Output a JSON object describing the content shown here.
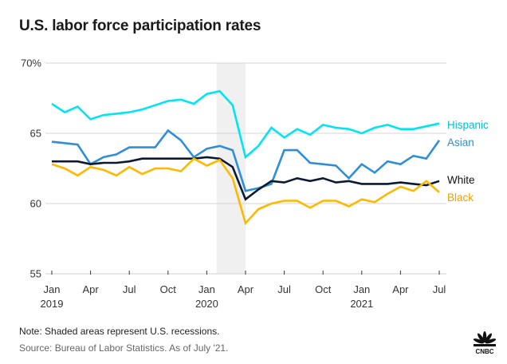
{
  "chart_data": {
    "type": "line",
    "title": "U.S. labor force participation rates",
    "xlabel": "",
    "ylabel": "",
    "ylim": [
      55,
      70
    ],
    "yticks": [
      {
        "value": 70,
        "label": "70%"
      },
      {
        "value": 65,
        "label": "65"
      },
      {
        "value": 60,
        "label": "60"
      },
      {
        "value": 55,
        "label": "55"
      }
    ],
    "x_start": "2019-01",
    "x_count": 31,
    "xticks": [
      {
        "index": 0,
        "label": "Jan",
        "year": "2019"
      },
      {
        "index": 3,
        "label": "Apr",
        "year": ""
      },
      {
        "index": 6,
        "label": "Jul",
        "year": ""
      },
      {
        "index": 9,
        "label": "Oct",
        "year": ""
      },
      {
        "index": 12,
        "label": "Jan",
        "year": "2020"
      },
      {
        "index": 15,
        "label": "Apr",
        "year": ""
      },
      {
        "index": 18,
        "label": "Jul",
        "year": ""
      },
      {
        "index": 21,
        "label": "Oct",
        "year": ""
      },
      {
        "index": 24,
        "label": "Jan",
        "year": "2021"
      },
      {
        "index": 27,
        "label": "Apr",
        "year": ""
      },
      {
        "index": 30,
        "label": "Jul",
        "year": ""
      }
    ],
    "recession": {
      "start_index": 13,
      "end_index": 15
    },
    "grid": true,
    "legend": "right-inline",
    "series": [
      {
        "name": "Hispanic",
        "color": "#00e5f5",
        "label_color": "#00c2d4",
        "values": [
          67.1,
          66.5,
          66.9,
          66.0,
          66.3,
          66.4,
          66.5,
          66.7,
          67.0,
          67.3,
          67.4,
          67.1,
          67.8,
          68.0,
          67.0,
          63.3,
          64.1,
          65.4,
          64.7,
          65.3,
          64.9,
          65.6,
          65.4,
          65.3,
          65.0,
          65.4,
          65.6,
          65.3,
          65.3,
          65.5,
          65.7
        ]
      },
      {
        "name": "Asian",
        "color": "#2f8fd6",
        "label_color": "#2f8fd6",
        "values": [
          64.4,
          64.3,
          64.2,
          62.8,
          63.3,
          63.5,
          64.0,
          64.0,
          64.0,
          65.2,
          64.5,
          63.3,
          63.9,
          64.1,
          63.8,
          60.9,
          61.1,
          61.4,
          63.8,
          63.8,
          62.9,
          62.8,
          62.7,
          61.8,
          62.8,
          62.2,
          63.0,
          62.8,
          63.4,
          63.2,
          64.5
        ]
      },
      {
        "name": "White",
        "color": "#0a1a33",
        "label_color": "#111111",
        "values": [
          63.0,
          63.0,
          63.0,
          62.8,
          62.9,
          62.9,
          63.0,
          63.2,
          63.2,
          63.2,
          63.2,
          63.2,
          63.3,
          63.2,
          62.6,
          60.3,
          61.0,
          61.6,
          61.5,
          61.8,
          61.6,
          61.8,
          61.5,
          61.6,
          61.4,
          61.4,
          61.4,
          61.5,
          61.4,
          61.3,
          61.6
        ]
      },
      {
        "name": "Black",
        "color": "#ffb800",
        "label_color": "#e8a300",
        "values": [
          62.8,
          62.5,
          62.0,
          62.6,
          62.4,
          62.0,
          62.6,
          62.1,
          62.5,
          62.5,
          62.3,
          63.2,
          62.7,
          63.1,
          61.8,
          58.6,
          59.6,
          60.0,
          60.2,
          60.2,
          59.7,
          60.2,
          60.2,
          59.8,
          60.3,
          60.1,
          60.7,
          61.2,
          60.9,
          61.6,
          60.8
        ]
      }
    ]
  },
  "footer": {
    "note": "Note: Shaded areas represent U.S. recessions.",
    "source": "Source: Bureau of Labor Statistics. As of July '21.",
    "logo": "CNBC"
  }
}
